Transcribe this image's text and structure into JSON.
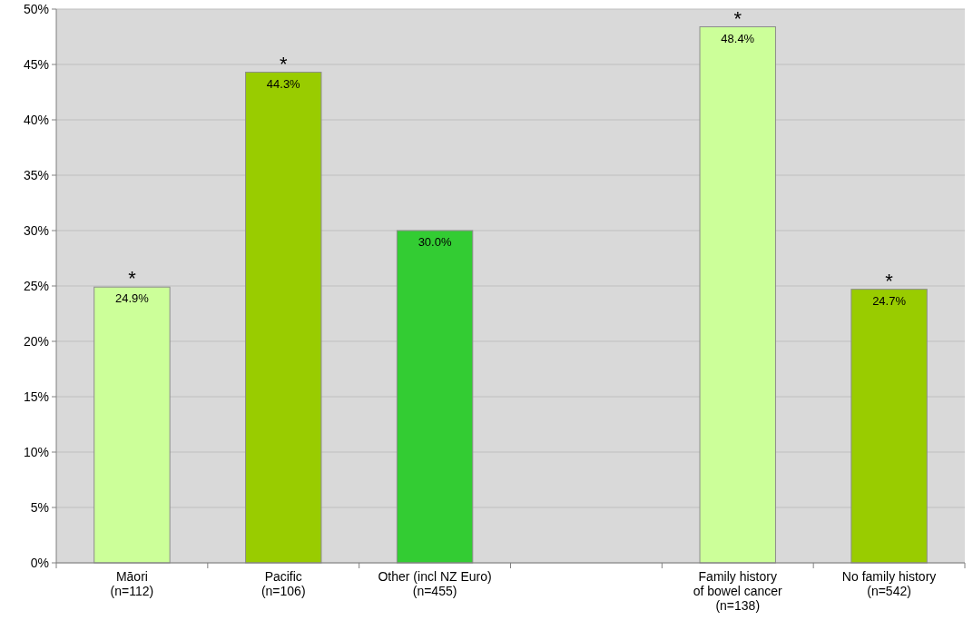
{
  "chart_data": {
    "type": "bar",
    "categories": [
      "Māori\n(n=112)",
      "Pacific\n(n=106)",
      "Other (incl NZ Euro)\n(n=455)",
      null,
      "Family history\nof bowel cancer\n(n=138)",
      "No family history\n(n=542)"
    ],
    "values": [
      24.9,
      44.3,
      30.0,
      null,
      48.4,
      24.7
    ],
    "colors": [
      "#ccff99",
      "#99cc00",
      "#33cc33",
      null,
      "#ccff99",
      "#99cc00"
    ],
    "value_labels": [
      "24.9%",
      "44.3%",
      "30.0%",
      null,
      "48.4%",
      "24.7%"
    ],
    "ylim": [
      0,
      50
    ],
    "yticks": [
      {
        "value": 0,
        "label": "0%"
      },
      {
        "value": 5,
        "label": "5%"
      },
      {
        "value": 10,
        "label": "10%"
      },
      {
        "value": 15,
        "label": "15%"
      },
      {
        "value": 20,
        "label": "20%"
      },
      {
        "value": 25,
        "label": "25%"
      },
      {
        "value": 30,
        "label": "30%"
      },
      {
        "value": 35,
        "label": "35%"
      },
      {
        "value": 40,
        "label": "40%"
      },
      {
        "value": 45,
        "label": "45%"
      },
      {
        "value": 50,
        "label": "50%"
      }
    ],
    "grid": "y",
    "annotations": [
      {
        "text": "*",
        "x": "Māori\n(n=112)",
        "y": 24.9
      },
      {
        "text": "*",
        "x": "Pacific\n(n=106)",
        "y": 44.3
      },
      {
        "text": "*",
        "x": "Family history\nof bowel cancer\n(n=138)",
        "y": 48.4
      },
      {
        "text": "*",
        "x": "No family history\n(n=542)",
        "y": 24.7
      }
    ]
  }
}
